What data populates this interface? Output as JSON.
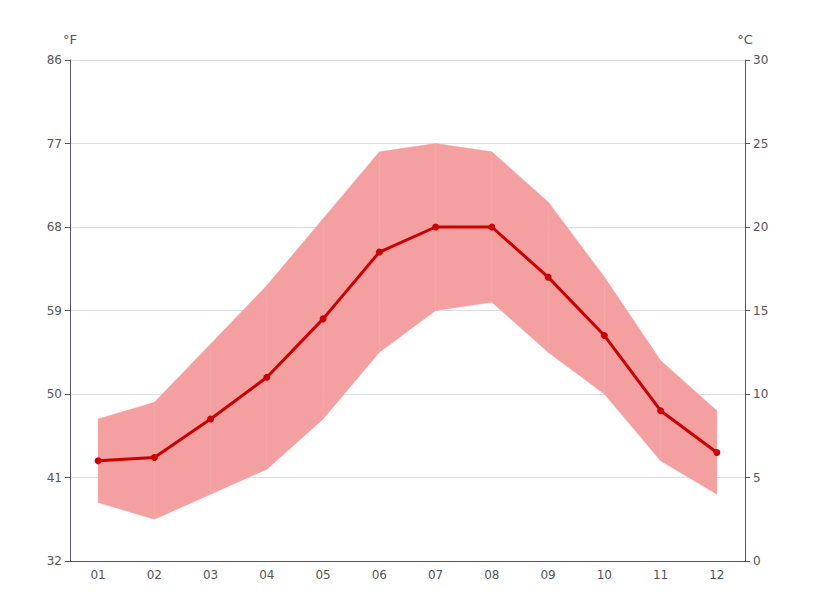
{
  "chart_data": {
    "type": "line",
    "categories": [
      "01",
      "02",
      "03",
      "04",
      "05",
      "06",
      "07",
      "08",
      "09",
      "10",
      "11",
      "12"
    ],
    "series": [
      {
        "type": "band",
        "color": "#f4a0a0",
        "lower": [
          3.5,
          2.5,
          4.0,
          5.5,
          8.5,
          12.5,
          15.0,
          15.5,
          12.5,
          10.0,
          6.0,
          4.0
        ],
        "upper": [
          8.5,
          9.5,
          13.0,
          16.5,
          20.5,
          24.5,
          25.0,
          24.5,
          21.5,
          17.0,
          12.0,
          9.0
        ]
      },
      {
        "type": "line",
        "color": "#cc0000",
        "marker": "circle",
        "values": [
          6.0,
          6.2,
          8.5,
          11.0,
          14.5,
          18.5,
          20.0,
          20.0,
          17.0,
          13.5,
          9.0,
          6.5
        ]
      }
    ],
    "ylabel": "°C",
    "y2label": "°F",
    "ylim": [
      0,
      30
    ],
    "yticks": [
      0,
      5,
      10,
      15,
      20,
      25,
      30
    ],
    "y2lim": [
      32,
      86
    ],
    "y2ticks": [
      32,
      41,
      50,
      59,
      68,
      77,
      86
    ],
    "grid": true
  }
}
